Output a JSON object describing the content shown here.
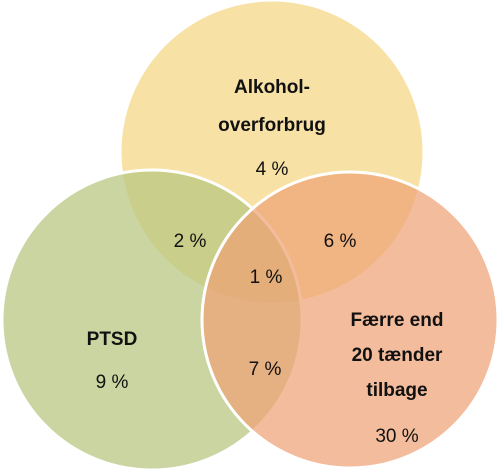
{
  "sets": [
    {
      "label": [
        "Alkohol-",
        "overforbrug"
      ],
      "value": "4 %"
    },
    {
      "label": [
        "PTSD"
      ],
      "value": "9 %"
    },
    {
      "label": [
        "Færre end",
        "20 tænder",
        "tilbage"
      ],
      "value": "30 %"
    }
  ],
  "overlaps": {
    "top_left": "2 %",
    "top_right": "6 %",
    "left_right": "7 %",
    "all": "1 %"
  }
}
